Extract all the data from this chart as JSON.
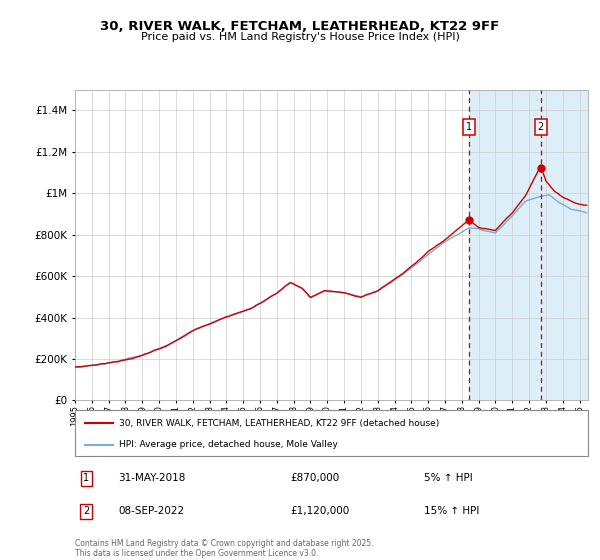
{
  "title": "30, RIVER WALK, FETCHAM, LEATHERHEAD, KT22 9FF",
  "subtitle": "Price paid vs. HM Land Registry's House Price Index (HPI)",
  "legend_house": "30, RIVER WALK, FETCHAM, LEATHERHEAD, KT22 9FF (detached house)",
  "legend_hpi": "HPI: Average price, detached house, Mole Valley",
  "house_color": "#cc0000",
  "hpi_color": "#7aadcf",
  "hpi_fill_color": "#dceef8",
  "annotation1_date": "31-MAY-2018",
  "annotation1_price": "£870,000",
  "annotation1_hpi": "5% ↑ HPI",
  "annotation1_value": 870000,
  "annotation1_year": 2018.42,
  "annotation2_date": "08-SEP-2022",
  "annotation2_price": "£1,120,000",
  "annotation2_hpi": "15% ↑ HPI",
  "annotation2_value": 1120000,
  "annotation2_year": 2022.69,
  "ylim": [
    0,
    1500000
  ],
  "ytop_display": 1400000,
  "xmin": 1995,
  "xmax": 2025.5,
  "footer": "Contains HM Land Registry data © Crown copyright and database right 2025.\nThis data is licensed under the Open Government Licence v3.0."
}
